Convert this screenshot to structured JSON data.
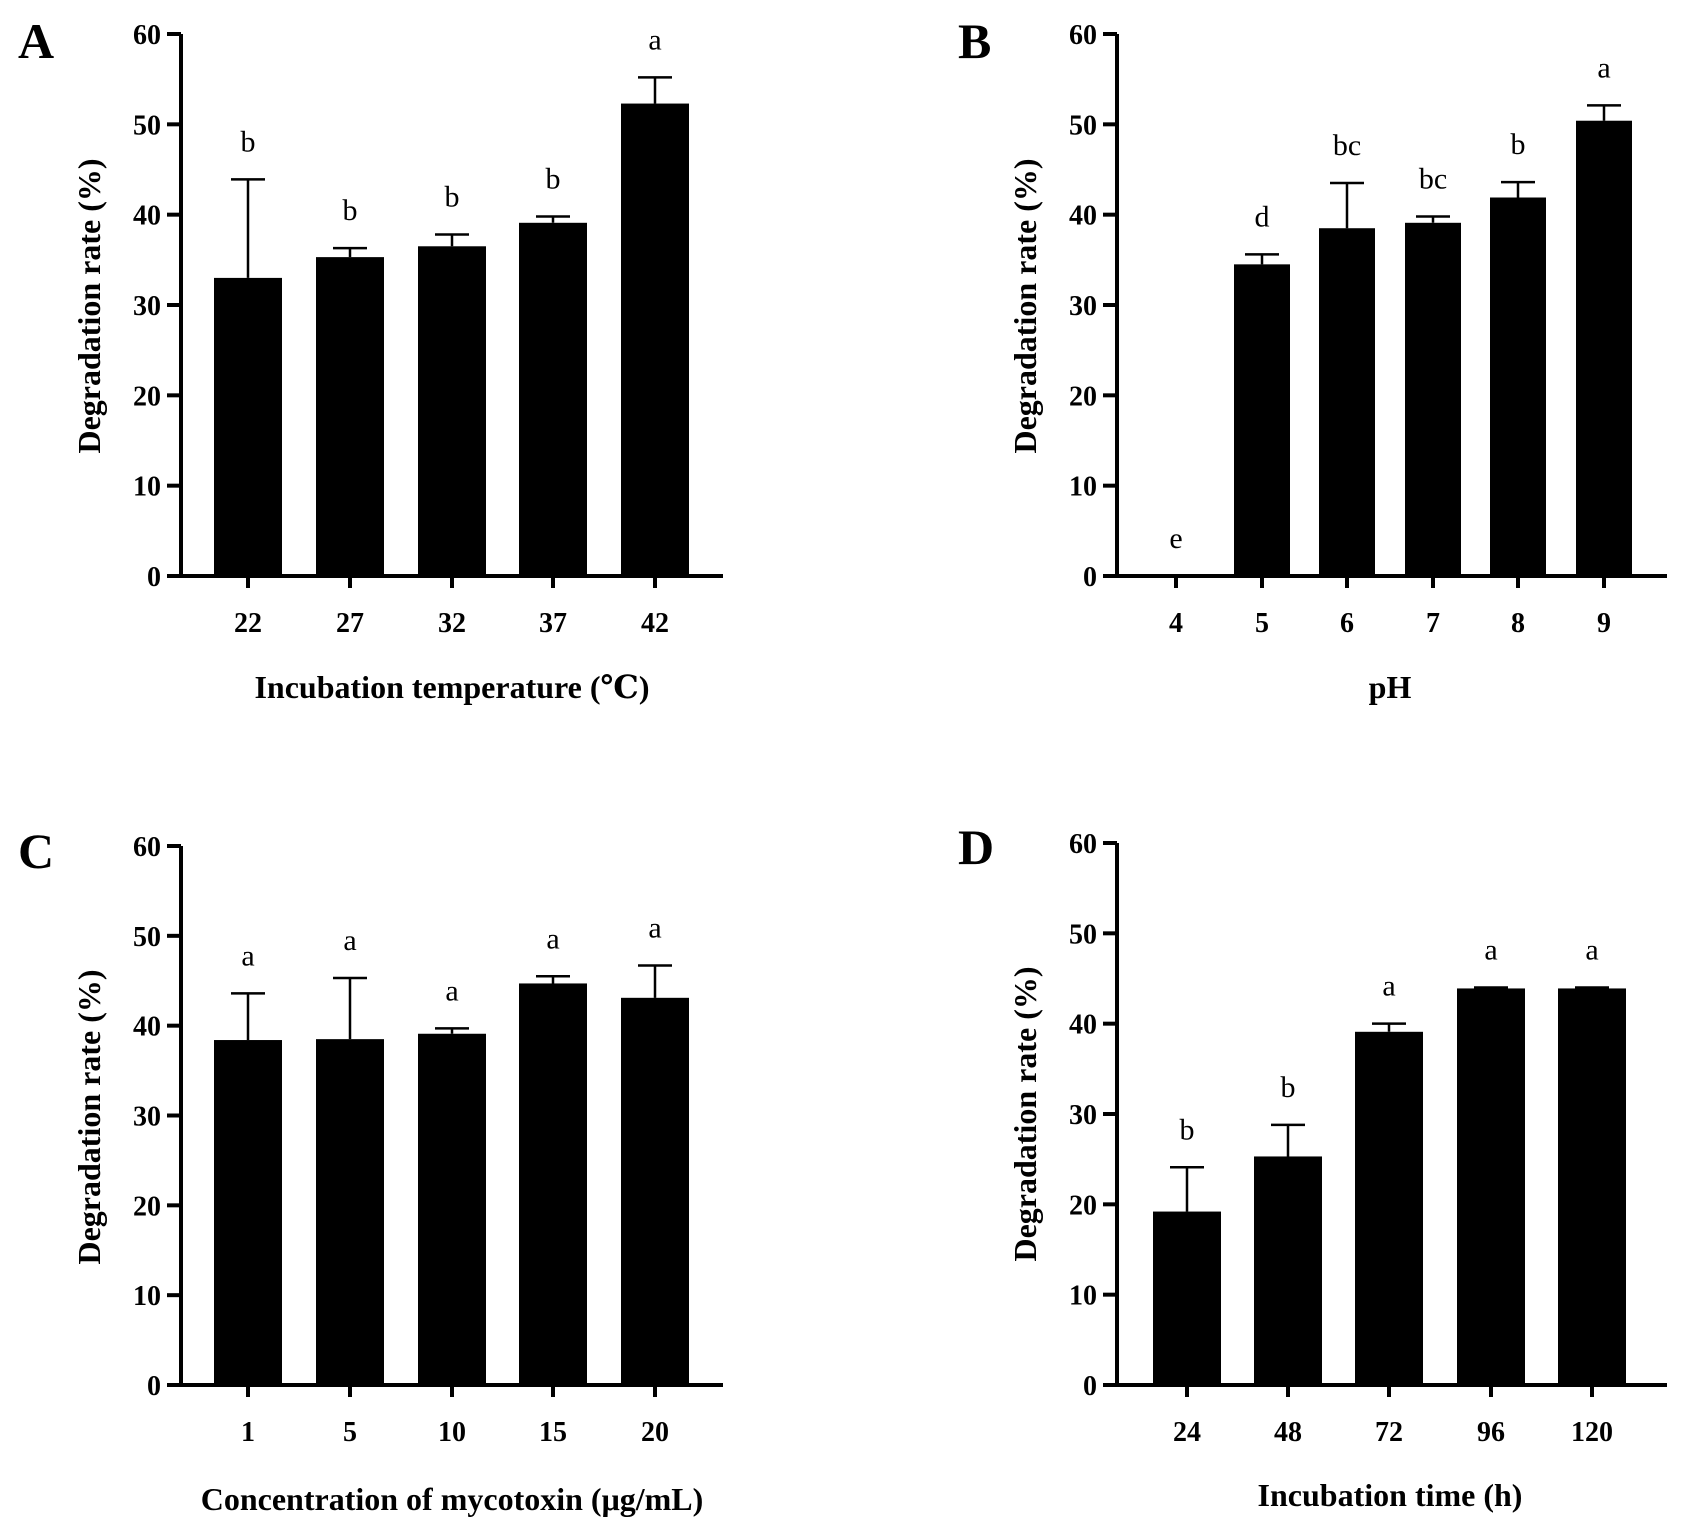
{
  "chart_data": [
    {
      "type": "bar",
      "panel": "A",
      "title": "",
      "xlabel": "Incubation temperature (℃)",
      "ylabel": "Degradation rate (%)",
      "ylim": [
        0,
        60
      ],
      "yticks": [
        0,
        10,
        20,
        30,
        40,
        50,
        60
      ],
      "categories": [
        "22",
        "27",
        "32",
        "37",
        "42"
      ],
      "values": [
        33.0,
        35.3,
        36.5,
        39.1,
        52.3
      ],
      "errors": [
        10.9,
        1.0,
        1.3,
        0.7,
        2.9
      ],
      "letters": [
        "b",
        "b",
        "b",
        "b",
        "a"
      ]
    },
    {
      "type": "bar",
      "panel": "B",
      "title": "",
      "xlabel": "pH",
      "ylabel": "Degradation rate (%)",
      "ylim": [
        0,
        60
      ],
      "yticks": [
        0,
        10,
        20,
        30,
        40,
        50,
        60
      ],
      "categories": [
        "4",
        "5",
        "6",
        "7",
        "8",
        "9"
      ],
      "values": [
        0,
        34.5,
        38.5,
        39.1,
        41.9,
        50.4
      ],
      "errors": [
        0,
        1.1,
        5.0,
        0.7,
        1.7,
        1.7
      ],
      "letters": [
        "e",
        "d",
        "bc",
        "bc",
        "b",
        "a"
      ]
    },
    {
      "type": "bar",
      "panel": "C",
      "title": "",
      "xlabel": "Concentration of mycotoxin (μg/mL)",
      "ylabel": "Degradation rate (%)",
      "ylim": [
        0,
        60
      ],
      "yticks": [
        0,
        10,
        20,
        30,
        40,
        50,
        60
      ],
      "categories": [
        "1",
        "5",
        "10",
        "15",
        "20"
      ],
      "values": [
        38.4,
        38.5,
        39.1,
        44.7,
        43.1
      ],
      "errors": [
        5.2,
        6.8,
        0.6,
        0.8,
        3.6
      ],
      "letters": [
        "a",
        "a",
        "a",
        "a",
        "a"
      ]
    },
    {
      "type": "bar",
      "panel": "D",
      "title": "",
      "xlabel": "Incubation time (h)",
      "ylabel": "Degradation rate (%)",
      "ylim": [
        0,
        60
      ],
      "yticks": [
        0,
        10,
        20,
        30,
        40,
        50,
        60
      ],
      "categories": [
        "24",
        "48",
        "72",
        "96",
        "120"
      ],
      "values": [
        19.2,
        25.3,
        39.1,
        43.9,
        43.9
      ],
      "errors": [
        4.9,
        3.5,
        0.9,
        0.1,
        0.1
      ],
      "letters": [
        "b",
        "b",
        "a",
        "a",
        "a"
      ]
    }
  ]
}
